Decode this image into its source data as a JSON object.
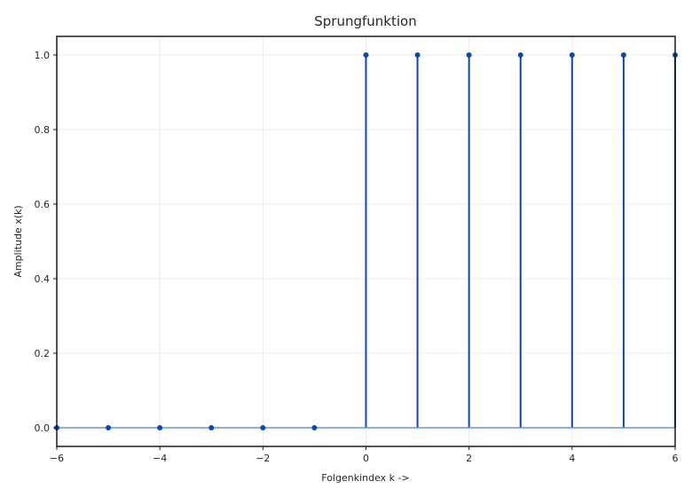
{
  "chart_data": {
    "type": "stem",
    "title": "Sprungfunktion",
    "xlabel": "Folgenkindex k ->",
    "ylabel": "Amplitude x(k)",
    "x": [
      -6,
      -5,
      -4,
      -3,
      -2,
      -1,
      0,
      1,
      2,
      3,
      4,
      5,
      6
    ],
    "y": [
      0,
      0,
      0,
      0,
      0,
      0,
      1,
      1,
      1,
      1,
      1,
      1,
      1
    ],
    "xlim": [
      -6,
      6
    ],
    "ylim": [
      -0.05,
      1.05
    ],
    "xticks": [
      -6,
      -4,
      -2,
      0,
      2,
      4,
      6
    ],
    "xtick_labels": [
      "−6",
      "−4",
      "−2",
      "0",
      "2",
      "4",
      "6"
    ],
    "yticks": [
      0.0,
      0.2,
      0.4,
      0.6,
      0.8,
      1.0
    ],
    "ytick_labels": [
      "0.0",
      "0.2",
      "0.4",
      "0.6",
      "0.8",
      "1.0"
    ],
    "grid": true,
    "stem_color": "#0a4aa8",
    "baseline_color": "#6f94cc"
  }
}
